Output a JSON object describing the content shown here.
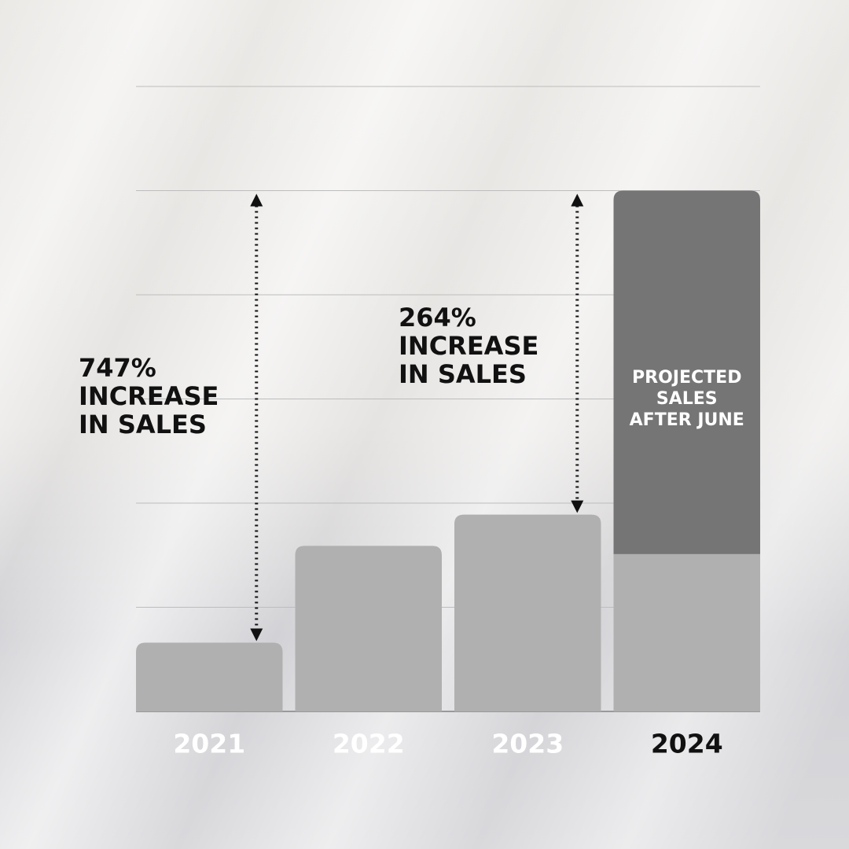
{
  "chart_data": {
    "type": "bar",
    "stacked": true,
    "categories": [
      "2021",
      "2022",
      "2023",
      "2024"
    ],
    "category_label_colors": [
      "#ffffff",
      "#ffffff",
      "#ffffff",
      "#111111"
    ],
    "series": [
      {
        "color": "#b0b0b0",
        "values": [
          0.66,
          1.59,
          1.89,
          1.51
        ]
      },
      {
        "name": "PROJECTED SALES AFTER JUNE",
        "color": "#757575",
        "values": [
          null,
          null,
          null,
          3.49
        ]
      }
    ],
    "ylim": [
      0,
      6
    ],
    "yticks": [
      0,
      1,
      2,
      3,
      4,
      5,
      6
    ],
    "grid": true,
    "annotations": [
      {
        "lines": [
          "747%",
          "INCREASE",
          "IN SALES"
        ]
      },
      {
        "lines": [
          "264%",
          "INCREASE",
          "IN SALES"
        ]
      }
    ]
  }
}
